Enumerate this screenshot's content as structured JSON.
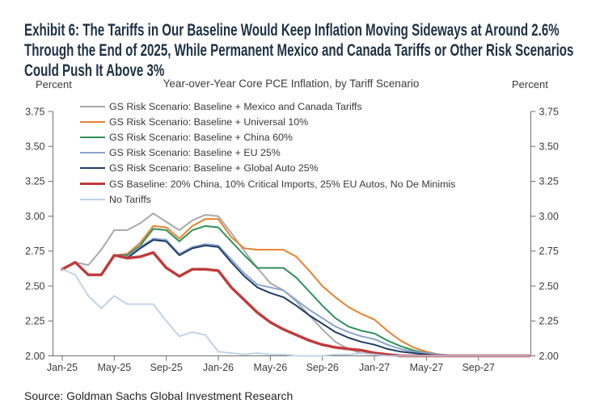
{
  "exhibit": {
    "title": "Exhibit 6: The Tariffs in Our Baseline Would Keep Inflation Moving Sideways at Around 2.6% Through the End of 2025, While Permanent Mexico and Canada Tariffs or Other Risk Scenarios Could Push It Above 3%"
  },
  "source": {
    "text": "Source: Goldman Sachs Global Investment Research"
  },
  "chart_data": {
    "type": "line",
    "title": "Year-over-Year Core PCE Inflation, by Tariff Scenario",
    "ylabel_left": "Percent",
    "ylabel_right": "Percent",
    "ylim": [
      2.0,
      3.75
    ],
    "yticks": [
      2.0,
      2.25,
      2.5,
      2.75,
      3.0,
      3.25,
      3.5,
      3.75
    ],
    "grid": false,
    "legend_position": "top-left inside plot",
    "xtick_every": 4,
    "months": [
      "Jan-25",
      "Feb-25",
      "Mar-25",
      "Apr-25",
      "May-25",
      "Jun-25",
      "Jul-25",
      "Aug-25",
      "Sep-25",
      "Oct-25",
      "Nov-25",
      "Dec-25",
      "Jan-26",
      "Feb-26",
      "Mar-26",
      "Apr-26",
      "May-26",
      "Jun-26",
      "Jul-26",
      "Aug-26",
      "Sep-26",
      "Oct-26",
      "Nov-26",
      "Dec-26",
      "Jan-27",
      "Feb-27",
      "Mar-27",
      "Apr-27",
      "May-27",
      "Jun-27",
      "Jul-27",
      "Aug-27",
      "Sep-27",
      "Oct-27",
      "Nov-27",
      "Dec-27"
    ],
    "series": [
      {
        "name": "gs-risk-mexico-canada",
        "label": "GS Risk Scenario: Baseline + Mexico and Canada Tariffs",
        "color": "#A9A9A9",
        "width": 2,
        "values": [
          2.62,
          2.67,
          2.65,
          2.76,
          2.9,
          2.9,
          2.95,
          3.02,
          2.96,
          2.9,
          2.97,
          3.01,
          3.0,
          2.88,
          2.75,
          2.63,
          2.52,
          2.47,
          2.39,
          2.29,
          2.19,
          2.1,
          2.05,
          2.02,
          2.01,
          2.0,
          2.0,
          2.0,
          2.0,
          2.0,
          2.0,
          2.0,
          2.0,
          2.0,
          2.0,
          2.0
        ]
      },
      {
        "name": "gs-risk-universal-10",
        "label": "GS Risk Scenario: Baseline + Universal 10%",
        "color": "#E8802E",
        "width": 2,
        "values": [
          2.62,
          2.67,
          2.58,
          2.58,
          2.72,
          2.73,
          2.81,
          2.93,
          2.92,
          2.84,
          2.93,
          2.98,
          2.98,
          2.85,
          2.77,
          2.76,
          2.76,
          2.76,
          2.71,
          2.61,
          2.5,
          2.42,
          2.35,
          2.3,
          2.26,
          2.18,
          2.11,
          2.06,
          2.03,
          2.01,
          2.0,
          2.0,
          2.0,
          2.0,
          2.0,
          2.0
        ]
      },
      {
        "name": "gs-risk-china-60",
        "label": "GS Risk Scenario: Baseline + China 60%",
        "color": "#2E9058",
        "width": 2,
        "values": [
          2.62,
          2.67,
          2.58,
          2.58,
          2.72,
          2.72,
          2.79,
          2.91,
          2.9,
          2.82,
          2.9,
          2.93,
          2.92,
          2.82,
          2.72,
          2.63,
          2.63,
          2.63,
          2.56,
          2.46,
          2.36,
          2.27,
          2.21,
          2.18,
          2.16,
          2.11,
          2.07,
          2.04,
          2.02,
          2.01,
          2.0,
          2.0,
          2.0,
          2.0,
          2.0,
          2.0
        ]
      },
      {
        "name": "gs-risk-eu-25",
        "label": "GS Risk Scenario: Baseline + EU 25%",
        "color": "#8AA4CE",
        "width": 2,
        "values": [
          2.62,
          2.67,
          2.58,
          2.58,
          2.72,
          2.71,
          2.78,
          2.84,
          2.83,
          2.73,
          2.78,
          2.8,
          2.79,
          2.69,
          2.59,
          2.51,
          2.49,
          2.47,
          2.4,
          2.33,
          2.27,
          2.21,
          2.17,
          2.14,
          2.12,
          2.08,
          2.05,
          2.03,
          2.02,
          2.01,
          2.0,
          2.0,
          2.0,
          2.0,
          2.0,
          2.0
        ]
      },
      {
        "name": "gs-risk-global-auto-25",
        "label": "GS Risk Scenario: Baseline + Global Auto 25%",
        "color": "#1F3D66",
        "width": 2,
        "values": [
          2.62,
          2.67,
          2.58,
          2.58,
          2.72,
          2.7,
          2.77,
          2.83,
          2.82,
          2.72,
          2.77,
          2.79,
          2.78,
          2.67,
          2.57,
          2.49,
          2.45,
          2.42,
          2.36,
          2.29,
          2.23,
          2.17,
          2.13,
          2.1,
          2.08,
          2.05,
          2.03,
          2.02,
          2.01,
          2.0,
          2.0,
          2.0,
          2.0,
          2.0,
          2.0,
          2.0
        ]
      },
      {
        "name": "gs-baseline",
        "label": "GS Baseline: 20% China, 10% Critical Imports, 25% EU Autos, No De Minimis",
        "color": "#C03A3A",
        "width": 3.4,
        "values": [
          2.62,
          2.67,
          2.58,
          2.58,
          2.72,
          2.7,
          2.71,
          2.74,
          2.63,
          2.57,
          2.62,
          2.62,
          2.61,
          2.49,
          2.4,
          2.31,
          2.24,
          2.19,
          2.15,
          2.11,
          2.08,
          2.06,
          2.05,
          2.04,
          2.02,
          2.01,
          2.0,
          2.0,
          2.0,
          2.0,
          2.0,
          2.0,
          2.0,
          2.0,
          2.0,
          2.0
        ]
      },
      {
        "name": "no-tariffs",
        "label": "No Tariffs",
        "color": "#B9D0E8",
        "width": 1.8,
        "values": [
          2.62,
          2.58,
          2.43,
          2.34,
          2.43,
          2.37,
          2.37,
          2.37,
          2.25,
          2.14,
          2.17,
          2.15,
          2.03,
          2.02,
          2.01,
          2.02,
          2.01,
          2.01,
          2.0,
          2.0,
          2.0,
          2.01,
          2.01,
          2.02,
          2.01,
          2.0,
          2.0,
          2.0,
          2.0,
          2.0,
          2.0,
          2.0,
          2.0,
          2.0,
          2.0,
          2.0
        ]
      }
    ]
  }
}
